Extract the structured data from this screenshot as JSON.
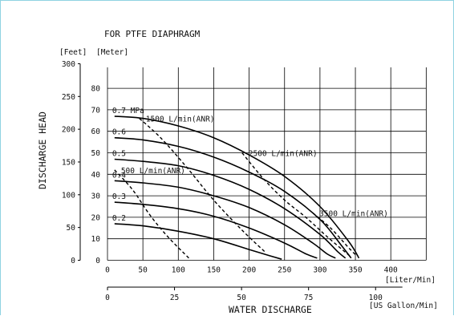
{
  "chart_data": {
    "type": "line",
    "title": "FOR PTFE DIAPHRAGM",
    "ylabel": "DISCHARGE  HEAD",
    "xlabel": "WATER  DISCHARGE",
    "feet_unit": "[Feet]",
    "meter_unit": "[Meter]",
    "liter_unit": "[Liter/Min]",
    "gallon_unit": "[US Gallon/Min]",
    "x_liter_ticks": [
      "0",
      "50",
      "100",
      "150",
      "200",
      "250",
      "300",
      "350",
      "400"
    ],
    "x_gallon_ticks": [
      "0",
      "25",
      "50",
      "75",
      "100"
    ],
    "y_feet_ticks": [
      "0",
      "50",
      "100",
      "150",
      "200",
      "250",
      "300"
    ],
    "y_meter_ticks": [
      "0",
      "10",
      "20",
      "30",
      "40",
      "50",
      "60",
      "70",
      "80"
    ],
    "xlim_liter": [
      0,
      450
    ],
    "ylim_meter": [
      0,
      90
    ],
    "grid": true,
    "pressure_curves": [
      {
        "label": "0.7 MPa",
        "x": [
          10,
          50,
          100,
          150,
          200,
          250,
          300,
          340,
          355
        ],
        "y": [
          67,
          66,
          62.5,
          57,
          49,
          39,
          25,
          9,
          1
        ]
      },
      {
        "label": "0.6",
        "x": [
          10,
          50,
          100,
          150,
          200,
          250,
          300,
          330,
          344
        ],
        "y": [
          57,
          56,
          53,
          48,
          41,
          32,
          19,
          7,
          1
        ]
      },
      {
        "label": "0.5",
        "x": [
          10,
          50,
          100,
          150,
          200,
          250,
          300,
          325,
          336
        ],
        "y": [
          47,
          46,
          44,
          39.5,
          33,
          24,
          12,
          4,
          1
        ]
      },
      {
        "label": "0.4",
        "x": [
          10,
          50,
          100,
          150,
          200,
          250,
          290,
          310,
          322
        ],
        "y": [
          37,
          36,
          34,
          30,
          24.5,
          16.5,
          8,
          3,
          1
        ]
      },
      {
        "label": "0.3",
        "x": [
          10,
          50,
          100,
          150,
          200,
          250,
          280,
          296
        ],
        "y": [
          27,
          26,
          24,
          20.5,
          15,
          8,
          3,
          1
        ]
      },
      {
        "label": "0.2",
        "x": [
          10,
          50,
          100,
          150,
          200,
          230,
          246
        ],
        "y": [
          17,
          16,
          13.5,
          10,
          5,
          2,
          0.5
        ]
      }
    ],
    "air_consumption_lines": [
      {
        "label": "500 L/min(ANR)",
        "x": [
          10,
          35,
          60,
          85,
          115
        ],
        "y": [
          42,
          33,
          21,
          11,
          1
        ]
      },
      {
        "label": "1500 L/min(ANR)",
        "x": [
          45,
          75,
          110,
          150,
          190,
          222
        ],
        "y": [
          66,
          57,
          44,
          28,
          14,
          4
        ]
      },
      {
        "label": "2500 L/min(ANR)",
        "x": [
          190,
          220,
          250,
          280,
          310,
          342
        ],
        "y": [
          50,
          38,
          28,
          20,
          11,
          2
        ]
      },
      {
        "label": "3500 L/min(ANR)",
        "x": [
          290,
          315,
          340,
          352
        ],
        "y": [
          22,
          15,
          6,
          2
        ]
      }
    ]
  }
}
